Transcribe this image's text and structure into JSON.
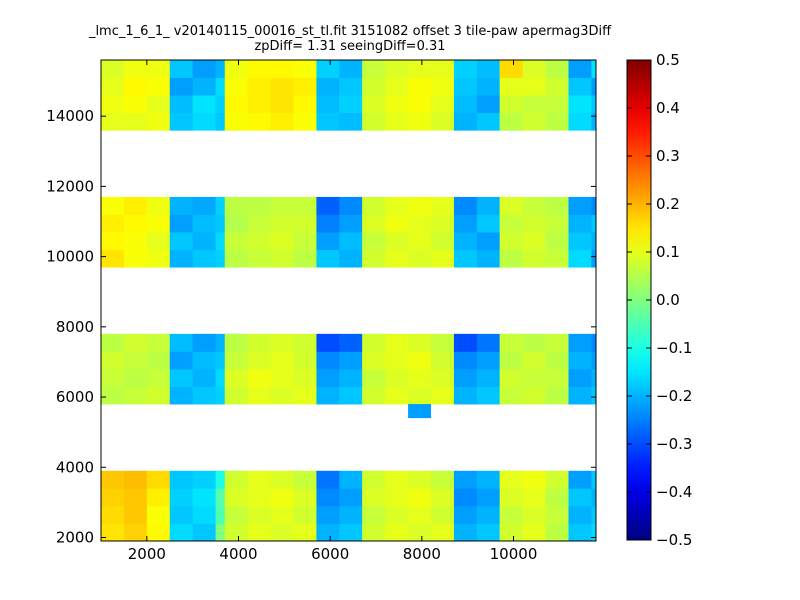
{
  "chart_data": {
    "type": "heatmap",
    "title_line1": "_lmc_1_6_1_ v20140115_00016_st_tl.fit 3151082 offset 3 tile-paw apermag3Diff",
    "title_line2": "zpDiff= 1.31 seeingDiff=0.31",
    "xlim": [
      1000,
      11800
    ],
    "ylim": [
      1900,
      15600
    ],
    "xticks": [
      2000,
      4000,
      6000,
      8000,
      10000
    ],
    "yticks": [
      2000,
      4000,
      6000,
      8000,
      10000,
      12000,
      14000
    ],
    "colorbar": {
      "colormap": "jet",
      "range": [
        -0.5,
        0.5
      ],
      "ticks": [
        "0.5",
        "0.4",
        "0.3",
        "0.2",
        "0.1",
        "0.0",
        "−0.1",
        "−0.2",
        "−0.3",
        "−0.4",
        "−0.5"
      ]
    },
    "cell_size": 500,
    "detectors": [
      {
        "x0": 1000,
        "y0": 13600,
        "values": [
          [
            0.1,
            0.1,
            0.11,
            -0.18,
            -0.16,
            -0.18
          ],
          [
            0.11,
            0.12,
            0.1,
            -0.19,
            -0.15,
            -0.17
          ],
          [
            0.1,
            0.13,
            0.12,
            -0.22,
            -0.2,
            -0.16
          ],
          [
            0.09,
            0.11,
            0.11,
            -0.18,
            -0.22,
            -0.2
          ]
        ],
        "edge": [
          null,
          null,
          null,
          null
        ]
      },
      {
        "x0": 3700,
        "y0": 13600,
        "values": [
          [
            0.12,
            0.13,
            0.14,
            0.12,
            -0.18,
            -0.19,
            0.0
          ],
          [
            0.13,
            0.14,
            0.15,
            0.13,
            -0.19,
            -0.17,
            -0.05
          ],
          [
            0.12,
            0.14,
            0.15,
            0.14,
            -0.2,
            -0.18,
            0.0
          ],
          [
            0.11,
            0.13,
            0.13,
            0.12,
            -0.17,
            -0.2,
            0.02
          ]
        ],
        "edge": [
          null,
          null,
          null,
          null
        ]
      },
      {
        "x0": 6700,
        "y0": 13600,
        "values": [
          [
            0.08,
            0.1,
            0.11,
            0.09,
            -0.2,
            -0.18,
            0.02
          ],
          [
            0.09,
            0.11,
            0.12,
            0.1,
            -0.19,
            -0.22,
            0.0
          ],
          [
            0.08,
            0.1,
            0.12,
            0.11,
            -0.18,
            -0.2,
            -0.02
          ],
          [
            0.07,
            0.09,
            0.1,
            0.1,
            -0.17,
            -0.19,
            0.03
          ]
        ],
        "edge": [
          null,
          null,
          null,
          null
        ]
      },
      {
        "x0": 9700,
        "y0": 13600,
        "values": [
          [
            0.06,
            0.08,
            0.06,
            -0.16,
            -0.2
          ],
          [
            0.08,
            0.07,
            0.07,
            -0.15,
            -0.18
          ],
          [
            0.1,
            0.1,
            0.08,
            -0.18,
            -0.22
          ],
          [
            0.16,
            0.09,
            0.06,
            -0.22,
            -0.15
          ]
        ],
        "edge": [
          null,
          null,
          null,
          null
        ]
      },
      {
        "x0": 1000,
        "y0": 9700,
        "values": [
          [
            0.15,
            0.12,
            0.11,
            -0.2,
            -0.18,
            -0.17
          ],
          [
            0.13,
            0.12,
            0.1,
            -0.18,
            -0.2,
            -0.16
          ],
          [
            0.14,
            0.13,
            0.12,
            -0.22,
            -0.19,
            -0.18
          ],
          [
            0.12,
            0.14,
            0.11,
            -0.2,
            -0.21,
            -0.17
          ]
        ],
        "edge": [
          null,
          null,
          null,
          null
        ]
      },
      {
        "x0": 3700,
        "y0": 9700,
        "values": [
          [
            0.06,
            0.07,
            0.08,
            0.06,
            -0.18,
            -0.2,
            0.0
          ],
          [
            0.07,
            0.08,
            0.09,
            0.07,
            -0.22,
            -0.19,
            -0.03
          ],
          [
            0.05,
            0.07,
            0.08,
            0.08,
            -0.25,
            -0.22,
            0.0
          ],
          [
            0.06,
            0.06,
            0.07,
            0.07,
            -0.28,
            -0.24,
            0.02
          ]
        ],
        "edge": [
          null,
          null,
          null,
          null
        ]
      },
      {
        "x0": 6700,
        "y0": 9700,
        "values": [
          [
            0.08,
            0.1,
            0.09,
            0.1,
            -0.18,
            -0.2,
            0.0
          ],
          [
            0.07,
            0.09,
            0.1,
            0.08,
            -0.2,
            -0.22,
            -0.05
          ],
          [
            0.09,
            0.11,
            0.1,
            0.09,
            -0.22,
            -0.18,
            0.0
          ],
          [
            0.08,
            0.1,
            0.11,
            0.1,
            -0.24,
            -0.2,
            0.03
          ]
        ],
        "edge": [
          null,
          null,
          null,
          null
        ]
      },
      {
        "x0": 9700,
        "y0": 9700,
        "values": [
          [
            0.06,
            0.08,
            0.07,
            -0.16,
            -0.22
          ],
          [
            0.08,
            0.09,
            0.06,
            -0.18,
            -0.2
          ],
          [
            0.07,
            0.08,
            0.07,
            -0.2,
            -0.18
          ],
          [
            0.09,
            0.07,
            0.06,
            -0.22,
            -0.24
          ]
        ],
        "edge": [
          null,
          null,
          null,
          null
        ]
      },
      {
        "x0": 1000,
        "y0": 5800,
        "values": [
          [
            0.06,
            0.07,
            0.08,
            -0.2,
            -0.18,
            -0.17
          ],
          [
            0.07,
            0.06,
            0.07,
            -0.18,
            -0.2,
            -0.16
          ],
          [
            0.08,
            0.07,
            0.06,
            -0.22,
            -0.19,
            -0.18
          ],
          [
            0.06,
            0.08,
            0.07,
            -0.19,
            -0.22,
            -0.2
          ]
        ],
        "edge": [
          null,
          null,
          null,
          null
        ]
      },
      {
        "x0": 3700,
        "y0": 5800,
        "values": [
          [
            0.08,
            0.1,
            0.09,
            0.1,
            -0.2,
            -0.18,
            0.0
          ],
          [
            0.09,
            0.11,
            0.1,
            0.09,
            -0.22,
            -0.2,
            -0.03
          ],
          [
            0.07,
            0.09,
            0.1,
            0.08,
            -0.24,
            -0.22,
            0.02
          ],
          [
            0.06,
            0.08,
            0.09,
            0.08,
            -0.3,
            -0.28,
            -0.05
          ]
        ],
        "edge": [
          null,
          null,
          null,
          null
        ]
      },
      {
        "x0": 6700,
        "y0": 5800,
        "values": [
          [
            0.08,
            0.1,
            0.09,
            0.1,
            -0.2,
            -0.18,
            0.0
          ],
          [
            0.07,
            0.09,
            0.1,
            0.09,
            -0.22,
            -0.2,
            -0.03
          ],
          [
            0.09,
            0.1,
            0.11,
            0.08,
            -0.24,
            -0.22,
            0.0
          ],
          [
            0.08,
            0.1,
            0.09,
            0.07,
            -0.3,
            -0.26,
            0.02
          ]
        ],
        "edge": [
          null,
          null,
          -0.22,
          null
        ]
      },
      {
        "x0": 9700,
        "y0": 5800,
        "values": [
          [
            0.07,
            0.08,
            0.06,
            -0.2,
            -0.18
          ],
          [
            0.08,
            0.07,
            0.07,
            -0.22,
            -0.2
          ],
          [
            0.06,
            0.08,
            0.06,
            -0.2,
            -0.22
          ],
          [
            0.07,
            0.06,
            0.07,
            -0.22,
            -0.24
          ]
        ],
        "edge": [
          null,
          null,
          null,
          null
        ]
      },
      {
        "x0": 1000,
        "y0": 1900,
        "values": [
          [
            0.15,
            0.17,
            0.13,
            -0.16,
            -0.18,
            0.0
          ],
          [
            0.16,
            0.18,
            0.12,
            -0.18,
            -0.16,
            -0.05
          ],
          [
            0.17,
            0.18,
            0.14,
            -0.17,
            -0.15,
            -0.04
          ],
          [
            0.18,
            0.19,
            0.16,
            -0.18,
            -0.17,
            -0.1
          ]
        ],
        "edge": [
          null,
          null,
          null,
          null
        ]
      },
      {
        "x0": 3700,
        "y0": 1900,
        "values": [
          [
            0.08,
            0.1,
            0.09,
            0.1,
            -0.2,
            -0.18,
            0.0
          ],
          [
            0.07,
            0.09,
            0.1,
            0.08,
            -0.22,
            -0.2,
            -0.05
          ],
          [
            0.09,
            0.1,
            0.11,
            0.09,
            -0.24,
            -0.22,
            0.0
          ],
          [
            0.08,
            0.1,
            0.09,
            0.07,
            -0.26,
            -0.2,
            0.02
          ]
        ],
        "edge": [
          null,
          null,
          null,
          null
        ]
      },
      {
        "x0": 6700,
        "y0": 1900,
        "values": [
          [
            0.08,
            0.1,
            0.09,
            0.1,
            -0.2,
            -0.18,
            0.0
          ],
          [
            0.07,
            0.09,
            0.1,
            0.08,
            -0.22,
            -0.2,
            -0.03
          ],
          [
            0.09,
            0.1,
            0.11,
            0.09,
            -0.24,
            -0.22,
            0.0
          ],
          [
            0.08,
            0.1,
            0.09,
            0.07,
            -0.22,
            -0.2,
            0.02
          ]
        ],
        "edge": [
          null,
          null,
          null,
          null
        ]
      },
      {
        "x0": 9700,
        "y0": 1900,
        "values": [
          [
            0.08,
            0.1,
            0.06,
            -0.18,
            -0.16
          ],
          [
            0.07,
            0.09,
            0.07,
            -0.2,
            -0.18
          ],
          [
            0.09,
            0.1,
            0.06,
            -0.18,
            -0.2
          ],
          [
            0.1,
            0.11,
            0.08,
            -0.22,
            -0.18
          ]
        ],
        "edge": [
          null,
          null,
          null,
          null
        ]
      }
    ]
  }
}
